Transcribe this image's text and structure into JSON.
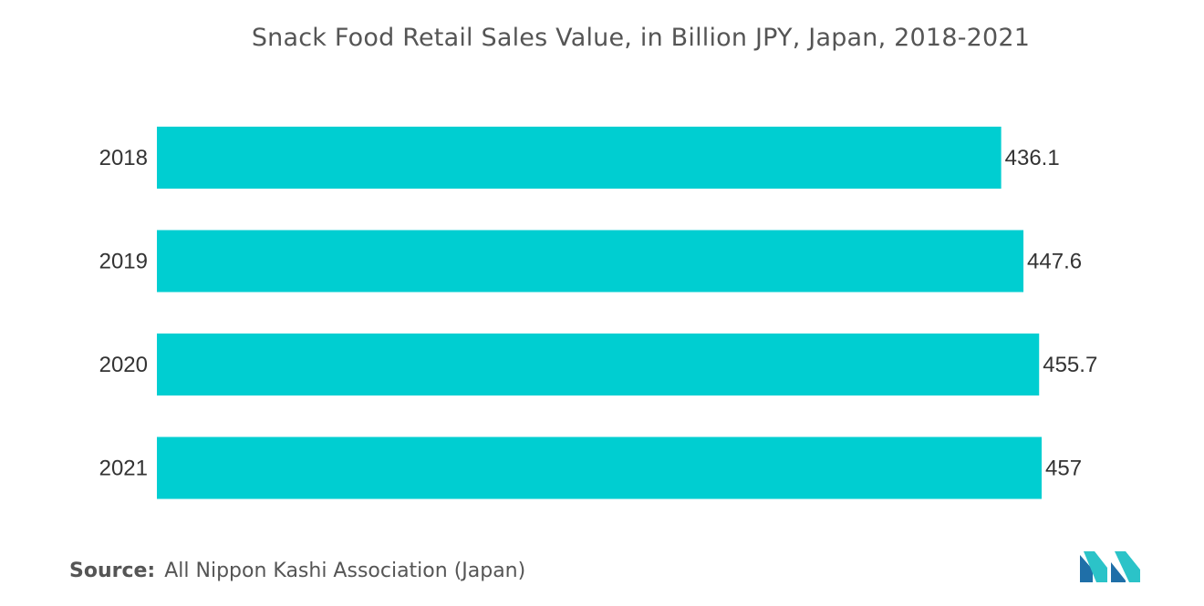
{
  "chart_data": {
    "type": "bar",
    "orientation": "horizontal",
    "title": "Snack Food Retail Sales Value, in Billion JPY, Japan, 2018-2021",
    "categories": [
      "2018",
      "2019",
      "2020",
      "2021"
    ],
    "values": [
      436.1,
      447.6,
      455.7,
      457
    ],
    "value_labels": [
      "436.1",
      "447.6",
      "455.7",
      "457"
    ],
    "xlim": [
      0,
      457
    ],
    "grid": false,
    "legend": "none",
    "bar_color": "#00CED1"
  },
  "source": {
    "label": "Source:",
    "text": "All Nippon Kashi Association (Japan)"
  },
  "logo": {
    "icon": "mordor-intelligence-logo-icon",
    "colors": [
      "#1F6FA8",
      "#2BC3C8"
    ]
  }
}
